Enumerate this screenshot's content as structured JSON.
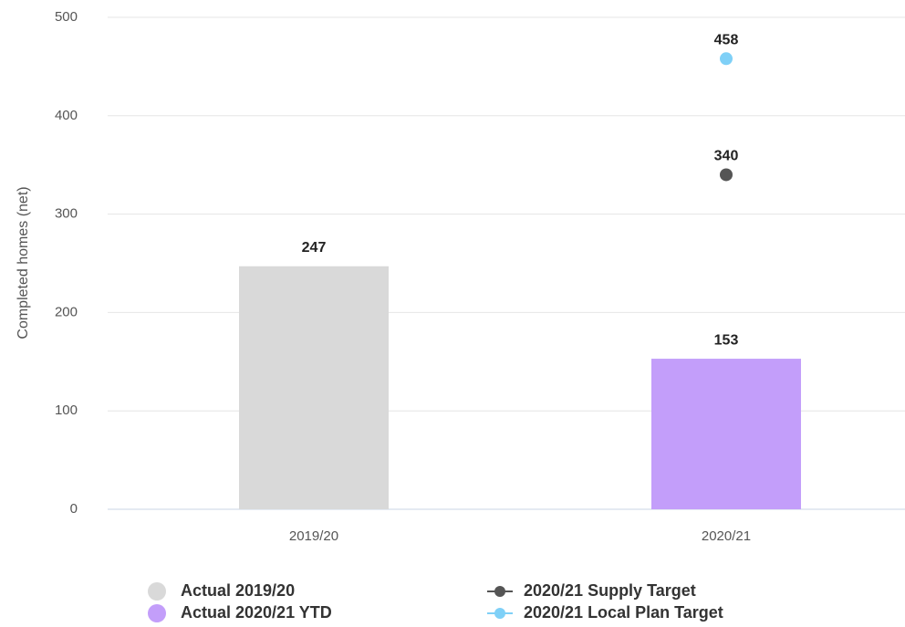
{
  "chart_data": {
    "type": "bar",
    "y_label": "Completed homes (net)",
    "categories": [
      "2019/20",
      "2020/21"
    ],
    "series": [
      {
        "name": "Actual 2019/20",
        "type": "bar",
        "color": "#d9d9d9",
        "values": [
          247,
          null
        ]
      },
      {
        "name": "Actual 2020/21 YTD",
        "type": "bar",
        "color": "#c39efa",
        "values": [
          null,
          153
        ]
      },
      {
        "name": "2020/21 Supply Target",
        "type": "scatter",
        "color": "#555555",
        "values": [
          null,
          340
        ]
      },
      {
        "name": "2020/21 Local Plan Target",
        "type": "scatter",
        "color": "#7fd0f7",
        "values": [
          null,
          458
        ]
      }
    ],
    "ylim": [
      0,
      500
    ],
    "yticks": [
      0,
      100,
      200,
      300,
      400,
      500
    ],
    "grid": true
  }
}
